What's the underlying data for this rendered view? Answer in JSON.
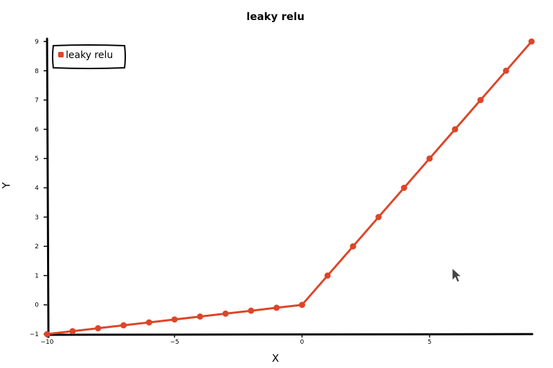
{
  "chart_data": {
    "type": "line",
    "title": "leaky relu",
    "xlabel": "X",
    "ylabel": "Y",
    "xlim": [
      -10,
      9
    ],
    "ylim": [
      -1,
      9
    ],
    "x_ticks": [
      -10,
      -5,
      0,
      5
    ],
    "y_ticks": [
      -1,
      0,
      1,
      2,
      3,
      4,
      5,
      6,
      7,
      8,
      9
    ],
    "legend_position": "top-left",
    "series": [
      {
        "name": "leaky relu",
        "color": "#dd4528",
        "x": [
          -10,
          -9,
          -8,
          -7,
          -6,
          -5,
          -4,
          -3,
          -2,
          -1,
          0,
          1,
          2,
          3,
          4,
          5,
          6,
          7,
          8,
          9
        ],
        "y": [
          -1.0,
          -0.9,
          -0.8,
          -0.7,
          -0.6,
          -0.5,
          -0.4,
          -0.3,
          -0.2,
          -0.1,
          0,
          1,
          2,
          3,
          4,
          5,
          6,
          7,
          8,
          9
        ]
      }
    ]
  },
  "cursor": {
    "icon": "mouse-pointer-icon"
  }
}
